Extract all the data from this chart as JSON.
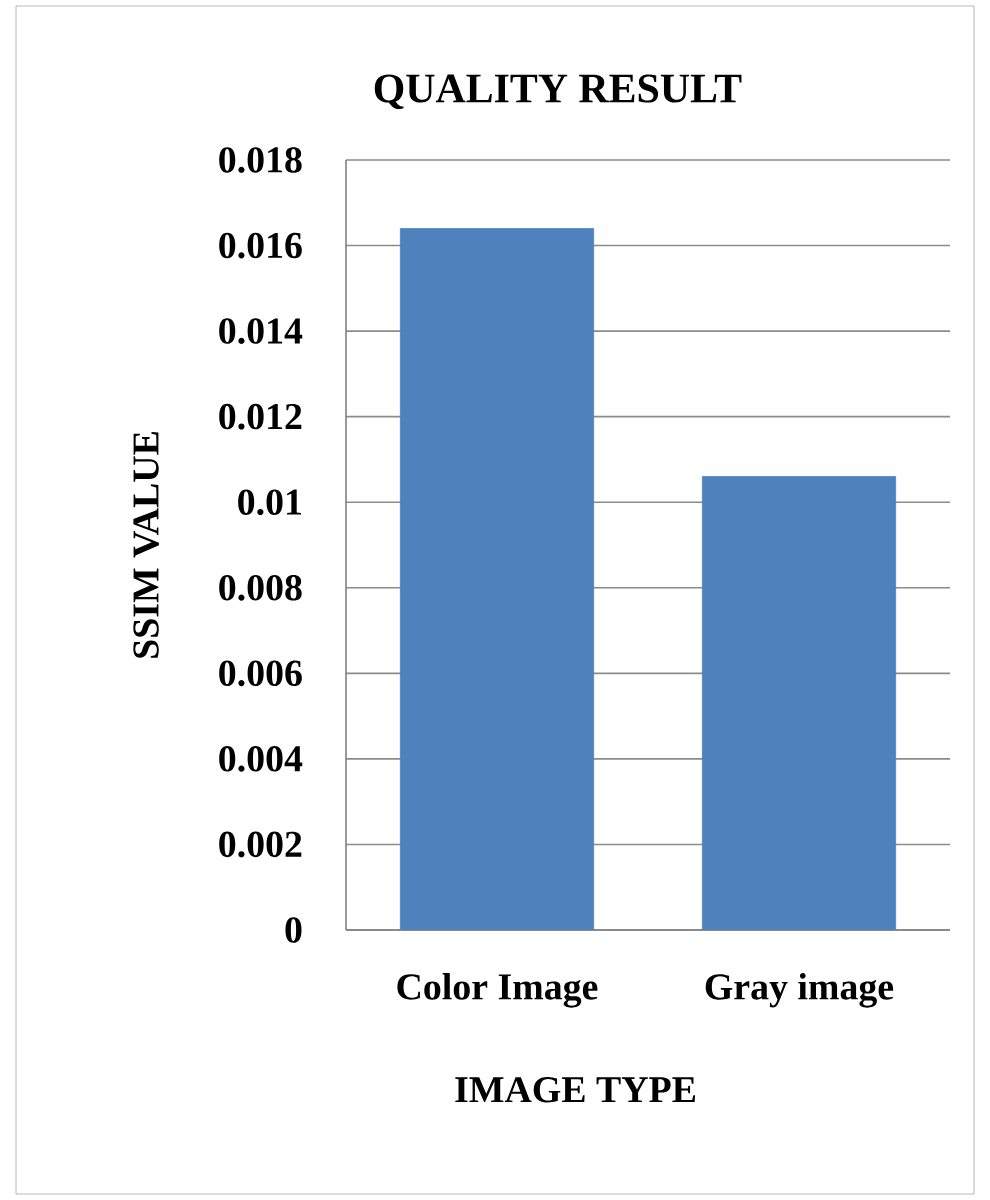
{
  "chart_data": {
    "type": "bar",
    "title": "QUALITY RESULT",
    "xlabel": "IMAGE TYPE",
    "ylabel": "SSIM  VALUE",
    "categories": [
      "Color Image",
      "Gray image"
    ],
    "values": [
      0.0164,
      0.0106
    ],
    "color": "#4f81bd",
    "ylim": [
      0,
      0.018
    ],
    "yticks": [
      0,
      0.002,
      0.004,
      0.006,
      0.008,
      0.01,
      0.012,
      0.014,
      0.016,
      0.018
    ],
    "grid": "y"
  }
}
